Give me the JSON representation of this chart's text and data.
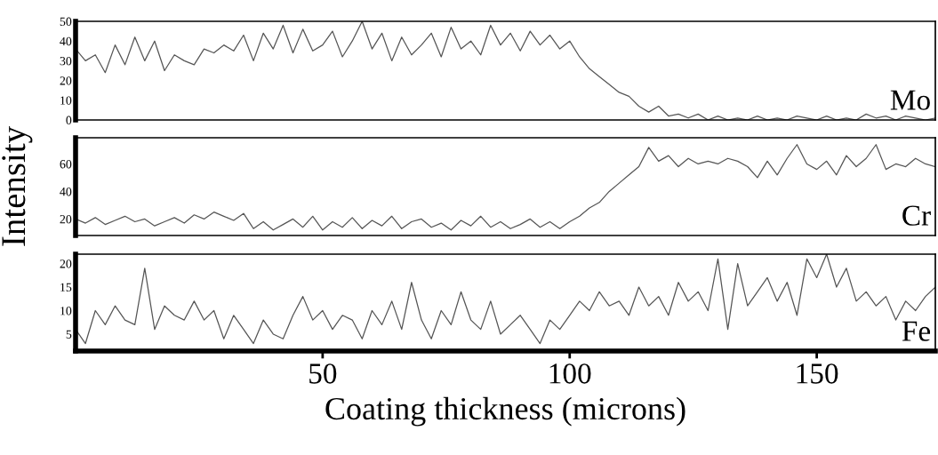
{
  "chart_data": [
    {
      "type": "line",
      "xlim": [
        0,
        174
      ],
      "ylim": [
        0,
        50
      ],
      "yticks": [
        0,
        10,
        20,
        30,
        40,
        50
      ],
      "tick_labels": "y",
      "grid": false,
      "legend": false,
      "x": [
        0,
        2,
        4,
        6,
        8,
        10,
        12,
        14,
        16,
        18,
        20,
        22,
        24,
        26,
        28,
        30,
        32,
        34,
        36,
        38,
        40,
        42,
        44,
        46,
        48,
        50,
        52,
        54,
        56,
        58,
        60,
        62,
        64,
        66,
        68,
        70,
        72,
        74,
        76,
        78,
        80,
        82,
        84,
        86,
        88,
        90,
        92,
        94,
        96,
        98,
        100,
        102,
        104,
        106,
        108,
        110,
        112,
        114,
        116,
        118,
        120,
        122,
        124,
        126,
        128,
        130,
        132,
        134,
        136,
        138,
        140,
        142,
        144,
        146,
        148,
        150,
        152,
        154,
        156,
        158,
        160,
        162,
        164,
        166,
        168,
        170,
        172,
        174
      ],
      "series": [
        {
          "name": "Mo",
          "color": "#555555",
          "values": [
            36,
            30,
            33,
            24,
            38,
            28,
            42,
            30,
            40,
            25,
            33,
            30,
            28,
            36,
            34,
            38,
            35,
            43,
            30,
            44,
            36,
            48,
            34,
            46,
            35,
            38,
            45,
            32,
            40,
            50,
            36,
            44,
            30,
            42,
            33,
            38,
            44,
            32,
            47,
            36,
            40,
            33,
            48,
            38,
            44,
            35,
            45,
            38,
            43,
            36,
            40,
            32,
            26,
            22,
            18,
            14,
            12,
            7,
            4,
            7,
            2,
            3,
            1,
            3,
            0,
            2,
            0,
            1,
            0,
            2,
            0,
            1,
            0,
            2,
            1,
            0,
            2,
            0,
            1,
            0,
            3,
            1,
            2,
            0,
            2,
            1,
            0,
            1
          ]
        }
      ]
    },
    {
      "type": "line",
      "xlim": [
        0,
        174
      ],
      "ylim": [
        8,
        79
      ],
      "yticks": [
        20,
        40,
        60
      ],
      "tick_labels": "y",
      "grid": false,
      "legend": false,
      "ylabel": "Intensity",
      "x": [
        0,
        2,
        4,
        6,
        8,
        10,
        12,
        14,
        16,
        18,
        20,
        22,
        24,
        26,
        28,
        30,
        32,
        34,
        36,
        38,
        40,
        42,
        44,
        46,
        48,
        50,
        52,
        54,
        56,
        58,
        60,
        62,
        64,
        66,
        68,
        70,
        72,
        74,
        76,
        78,
        80,
        82,
        84,
        86,
        88,
        90,
        92,
        94,
        96,
        98,
        100,
        102,
        104,
        106,
        108,
        110,
        112,
        114,
        116,
        118,
        120,
        122,
        124,
        126,
        128,
        130,
        132,
        134,
        136,
        138,
        140,
        142,
        144,
        146,
        148,
        150,
        152,
        154,
        156,
        158,
        160,
        162,
        164,
        166,
        168,
        170,
        172,
        174
      ],
      "series": [
        {
          "name": "Cr",
          "color": "#555555",
          "values": [
            20,
            17,
            21,
            16,
            19,
            22,
            18,
            20,
            15,
            18,
            21,
            17,
            23,
            20,
            25,
            22,
            19,
            24,
            13,
            18,
            12,
            16,
            20,
            14,
            22,
            12,
            18,
            14,
            21,
            13,
            19,
            15,
            22,
            13,
            18,
            20,
            14,
            17,
            12,
            19,
            15,
            22,
            14,
            18,
            13,
            16,
            20,
            14,
            18,
            13,
            18,
            22,
            28,
            32,
            40,
            46,
            52,
            58,
            72,
            62,
            66,
            58,
            64,
            60,
            62,
            60,
            64,
            62,
            58,
            50,
            62,
            52,
            64,
            74,
            60,
            56,
            62,
            52,
            66,
            58,
            64,
            74,
            56,
            60,
            58,
            64,
            60,
            58
          ]
        }
      ]
    },
    {
      "type": "line",
      "xlim": [
        0,
        174
      ],
      "xticks": [
        50,
        100,
        150
      ],
      "ylim": [
        1.4,
        22
      ],
      "yticks": [
        5,
        10,
        15,
        20
      ],
      "grid": false,
      "legend": false,
      "xlabel": "Coating thickness (microns)",
      "x": [
        0,
        2,
        4,
        6,
        8,
        10,
        12,
        14,
        16,
        18,
        20,
        22,
        24,
        26,
        28,
        30,
        32,
        34,
        36,
        38,
        40,
        42,
        44,
        46,
        48,
        50,
        52,
        54,
        56,
        58,
        60,
        62,
        64,
        66,
        68,
        70,
        72,
        74,
        76,
        78,
        80,
        82,
        84,
        86,
        88,
        90,
        92,
        94,
        96,
        98,
        100,
        102,
        104,
        106,
        108,
        110,
        112,
        114,
        116,
        118,
        120,
        122,
        124,
        126,
        128,
        130,
        132,
        134,
        136,
        138,
        140,
        142,
        144,
        146,
        148,
        150,
        152,
        154,
        156,
        158,
        160,
        162,
        164,
        166,
        168,
        170,
        172,
        174
      ],
      "series": [
        {
          "name": "Fe",
          "color": "#555555",
          "values": [
            6,
            3,
            10,
            7,
            11,
            8,
            7,
            19,
            6,
            11,
            9,
            8,
            12,
            8,
            10,
            4,
            9,
            6,
            3,
            8,
            5,
            4,
            9,
            13,
            8,
            10,
            6,
            9,
            8,
            4,
            10,
            7,
            12,
            6,
            16,
            8,
            4,
            10,
            7,
            14,
            8,
            6,
            12,
            5,
            7,
            9,
            6,
            3,
            8,
            6,
            9,
            12,
            10,
            14,
            11,
            12,
            9,
            15,
            11,
            13,
            9,
            16,
            12,
            14,
            10,
            21,
            6,
            20,
            11,
            14,
            17,
            12,
            16,
            9,
            21,
            17,
            22,
            15,
            19,
            12,
            14,
            11,
            13,
            8,
            12,
            10,
            13,
            15
          ]
        }
      ]
    }
  ]
}
